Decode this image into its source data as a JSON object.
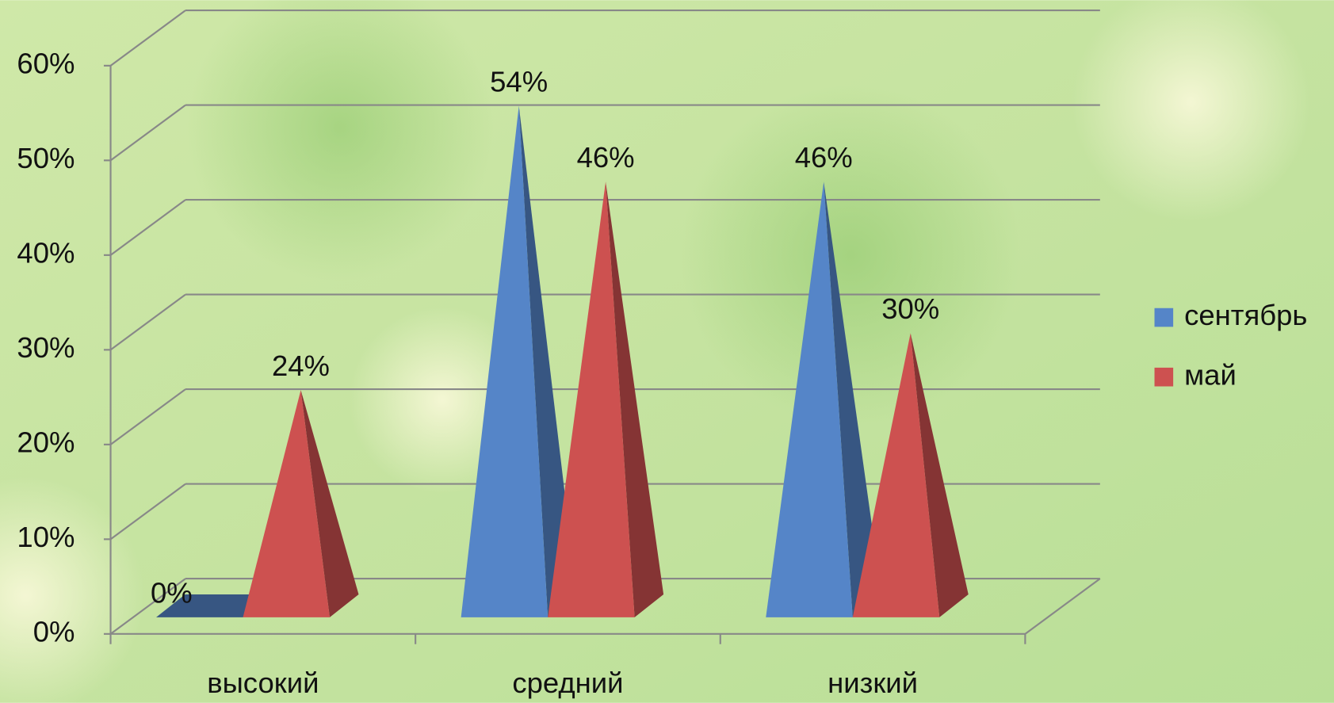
{
  "chart_data": {
    "type": "pyramid3d",
    "categories": [
      "высокий",
      "средний",
      "низкий"
    ],
    "series": [
      {
        "name": "сентябрь",
        "color": "#5585c8",
        "values": [
          0,
          54,
          46
        ],
        "value_labels": [
          "0%",
          "54%",
          "46%"
        ]
      },
      {
        "name": "май",
        "color": "#cd5150",
        "values": [
          24,
          46,
          30
        ],
        "value_labels": [
          "24%",
          "46%",
          "30%"
        ]
      }
    ],
    "ylim": [
      0,
      60
    ],
    "yticks": [
      {
        "value": 0,
        "label": "0%"
      },
      {
        "value": 10,
        "label": "10%"
      },
      {
        "value": 20,
        "label": "20%"
      },
      {
        "value": 30,
        "label": "30%"
      },
      {
        "value": 40,
        "label": "40%"
      },
      {
        "value": 50,
        "label": "50%"
      },
      {
        "value": 60,
        "label": "60%"
      }
    ],
    "grid": true,
    "legend": "right"
  }
}
